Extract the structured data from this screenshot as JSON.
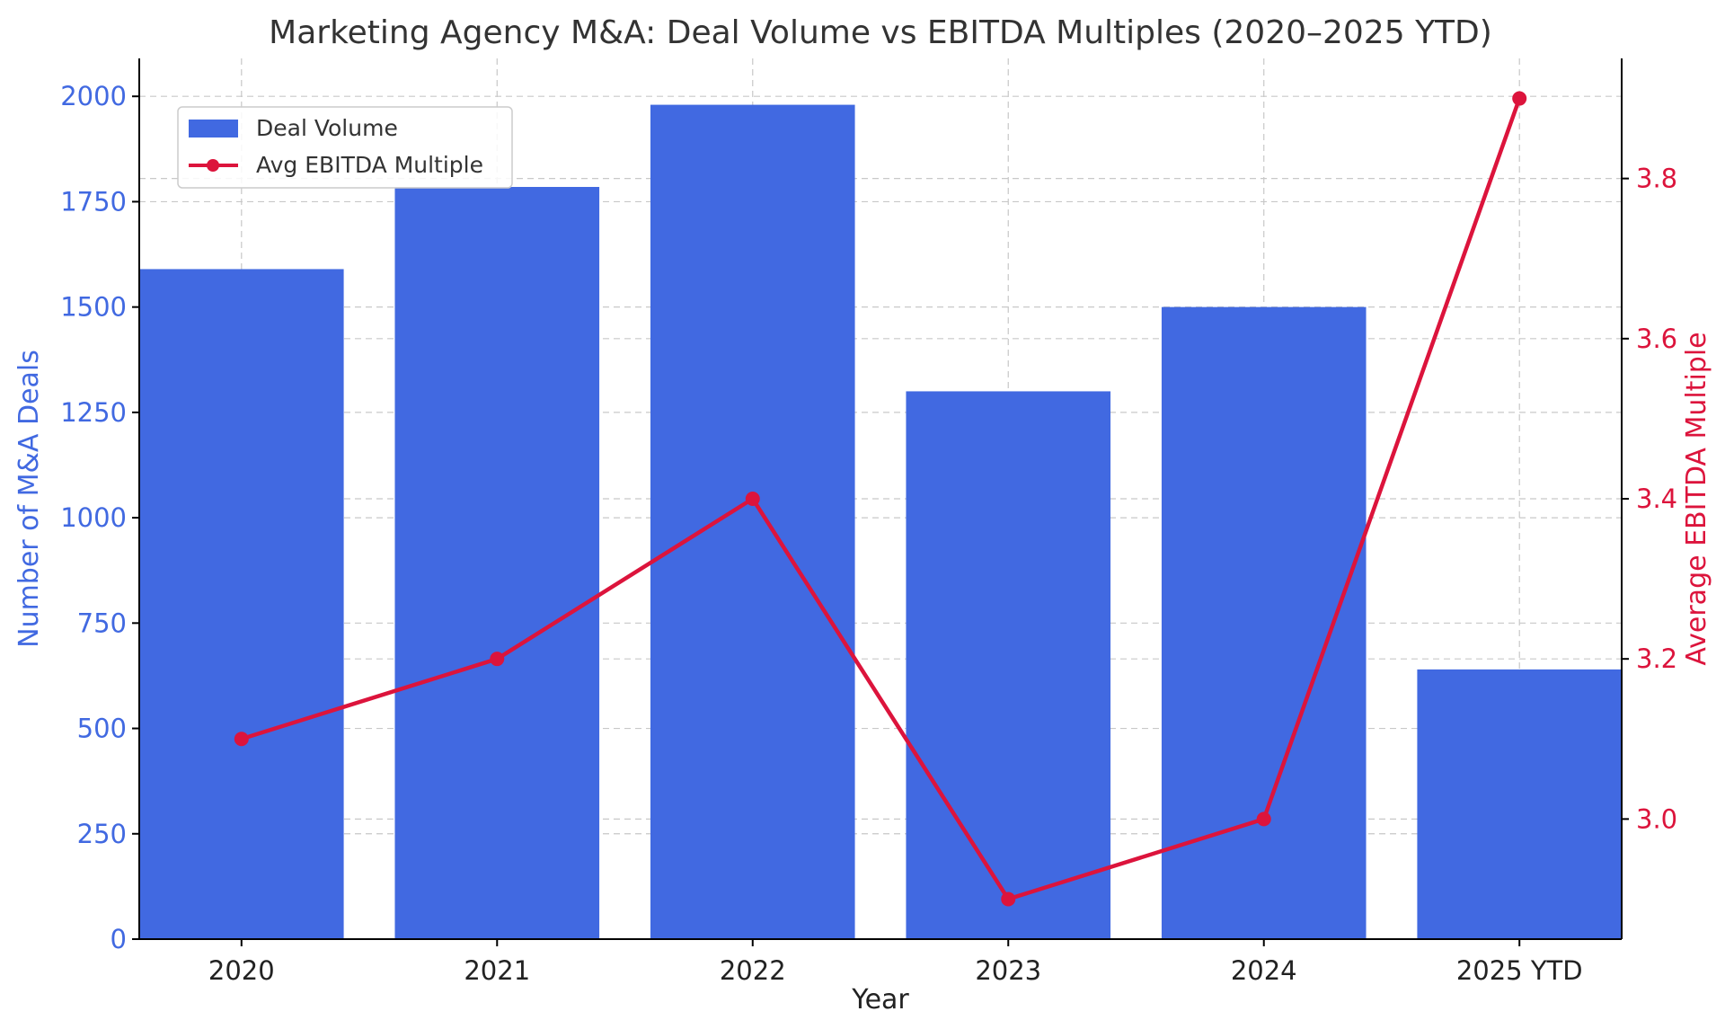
{
  "chart_data": {
    "type": "bar+line",
    "title": "Marketing Agency M&A: Deal Volume vs EBITDA Multiples (2020–2025 YTD)",
    "xlabel": "Year",
    "ylabel_left": "Number of M&A Deals",
    "ylabel_right": "Average EBITDA Multiple",
    "categories": [
      "2020",
      "2021",
      "2022",
      "2023",
      "2024",
      "2025 YTD"
    ],
    "series": [
      {
        "name": "Deal Volume",
        "type": "bar",
        "axis": "left",
        "color": "#4169e1",
        "values": [
          1590,
          1785,
          1980,
          1300,
          1500,
          640
        ]
      },
      {
        "name": "Avg EBITDA Multiple",
        "type": "line",
        "axis": "right",
        "color": "#dc143c",
        "values": [
          3.1,
          3.2,
          3.4,
          2.9,
          3.0,
          3.9
        ]
      }
    ],
    "ylim_left": [
      0,
      2090
    ],
    "ylim_right": [
      2.85,
      3.95
    ],
    "yticks_left": [
      "0",
      "250",
      "500",
      "750",
      "1000",
      "1250",
      "1500",
      "1750",
      "2000"
    ],
    "yticks_right": [
      "3.0",
      "3.2",
      "3.4",
      "3.6",
      "3.8"
    ],
    "legend_position": "upper-left",
    "grid": true,
    "left_axis_color": "#4169e1",
    "right_axis_color": "#dc143c"
  }
}
